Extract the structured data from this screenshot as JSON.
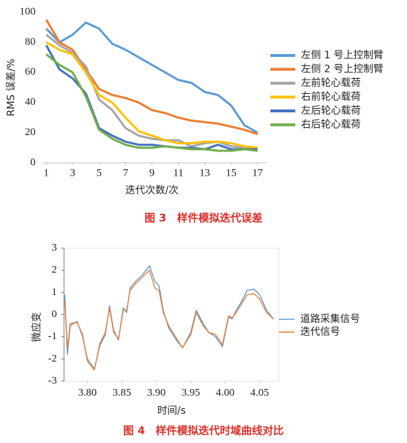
{
  "chart_data": [
    {
      "type": "line",
      "caption": "图 3　样件模拟迭代误差",
      "y_label": "RMS 误差/%",
      "x_label": "迭代次数/次",
      "x": [
        1,
        2,
        3,
        4,
        5,
        6,
        7,
        8,
        9,
        10,
        11,
        12,
        13,
        14,
        15,
        16,
        17
      ],
      "xlim": [
        1,
        17
      ],
      "xticks": [
        1,
        3,
        5,
        7,
        9,
        11,
        13,
        15,
        17
      ],
      "ylim": [
        0,
        100
      ],
      "yticks": [
        0,
        20,
        40,
        60,
        80,
        100
      ],
      "grid": false,
      "legend": "right",
      "series": [
        {
          "name": "左侧 1 号上控制臂",
          "color": "#5b9bd5",
          "values": [
            89,
            80,
            85,
            93,
            89,
            79,
            75,
            70,
            65,
            60,
            55,
            53,
            47,
            45,
            38,
            25,
            20
          ]
        },
        {
          "name": "左侧 2 号上控制臂",
          "color": "#ed7d31",
          "values": [
            95,
            80,
            75,
            62,
            49,
            45,
            43,
            40,
            35,
            33,
            30,
            28,
            27,
            26,
            24,
            22,
            19
          ]
        },
        {
          "name": "左前轮心载荷",
          "color": "#a5a5a5",
          "values": [
            85,
            78,
            73,
            64,
            42,
            35,
            23,
            18,
            16,
            15,
            15,
            11,
            13,
            14,
            11,
            10,
            9
          ]
        },
        {
          "name": "右前轮心载荷",
          "color": "#ffc000",
          "values": [
            80,
            75,
            72,
            60,
            45,
            40,
            30,
            21,
            18,
            15,
            13,
            13,
            14,
            14,
            13,
            11,
            10
          ]
        },
        {
          "name": "左后轮心载荷",
          "color": "#4472c4",
          "values": [
            78,
            62,
            56,
            46,
            23,
            18,
            14,
            12,
            12,
            11,
            10,
            10,
            9,
            12,
            9,
            9,
            9
          ]
        },
        {
          "name": "右后轮心载荷",
          "color": "#70ad47",
          "values": [
            72,
            65,
            60,
            44,
            22,
            16,
            12,
            10,
            10,
            11,
            10,
            9,
            9,
            8,
            8,
            9,
            8
          ]
        }
      ]
    },
    {
      "type": "line",
      "caption": "图 4　样件模拟迭代时域曲线对比",
      "y_label": "微应变",
      "x_label": "时间/s",
      "x": [
        3.767,
        3.771,
        3.775,
        3.785,
        3.793,
        3.8,
        3.81,
        3.818,
        3.826,
        3.832,
        3.838,
        3.845,
        3.852,
        3.857,
        3.862,
        3.87,
        3.88,
        3.89,
        3.898,
        3.904,
        3.91,
        3.918,
        3.928,
        3.938,
        3.95,
        3.958,
        3.968,
        3.976,
        3.986,
        3.996,
        4.005,
        4.01,
        4.016,
        4.024,
        4.032,
        4.042,
        4.05,
        4.06,
        4.07
      ],
      "xlim": [
        3.766,
        4.078
      ],
      "xticks": [
        {
          "value": 3.8,
          "label": "3.80"
        },
        3.85,
        {
          "value": 3.9,
          "label": "3.90"
        },
        3.95,
        {
          "value": 4.0,
          "label": "4.00"
        },
        4.05
      ],
      "ylim": [
        -3,
        3
      ],
      "yticks": [
        -3,
        -2,
        -1,
        0,
        1,
        2,
        3
      ],
      "grid": false,
      "legend": "right",
      "series": [
        {
          "name": "道路采集信号",
          "color": "#5b9bd5",
          "values": [
            0.9,
            -1.8,
            -0.5,
            -0.3,
            -1.0,
            -2.0,
            -2.45,
            -1.4,
            -0.9,
            0.4,
            -0.7,
            -1.15,
            0.3,
            0.1,
            1.2,
            1.5,
            1.8,
            2.2,
            1.5,
            1.3,
            0.2,
            -0.6,
            -1.1,
            -1.5,
            -0.8,
            0.2,
            -0.4,
            -0.8,
            -1.0,
            -1.45,
            -0.1,
            -0.2,
            0.2,
            0.6,
            1.1,
            1.15,
            0.9,
            0.2,
            -0.2
          ]
        },
        {
          "name": "迭代信号",
          "color": "#ed7d31",
          "values": [
            0.6,
            -1.5,
            -0.4,
            -0.35,
            -0.9,
            -2.1,
            -2.5,
            -1.3,
            -0.8,
            0.3,
            -0.8,
            -1.1,
            0.2,
            0.2,
            1.1,
            1.4,
            1.7,
            2.0,
            1.2,
            1.1,
            0.1,
            -0.5,
            -1.0,
            -1.5,
            -0.9,
            0.1,
            -0.5,
            -0.8,
            -0.9,
            -1.35,
            -0.05,
            -0.15,
            0.1,
            0.5,
            0.9,
            0.95,
            0.7,
            0.1,
            -0.2
          ]
        }
      ]
    }
  ]
}
